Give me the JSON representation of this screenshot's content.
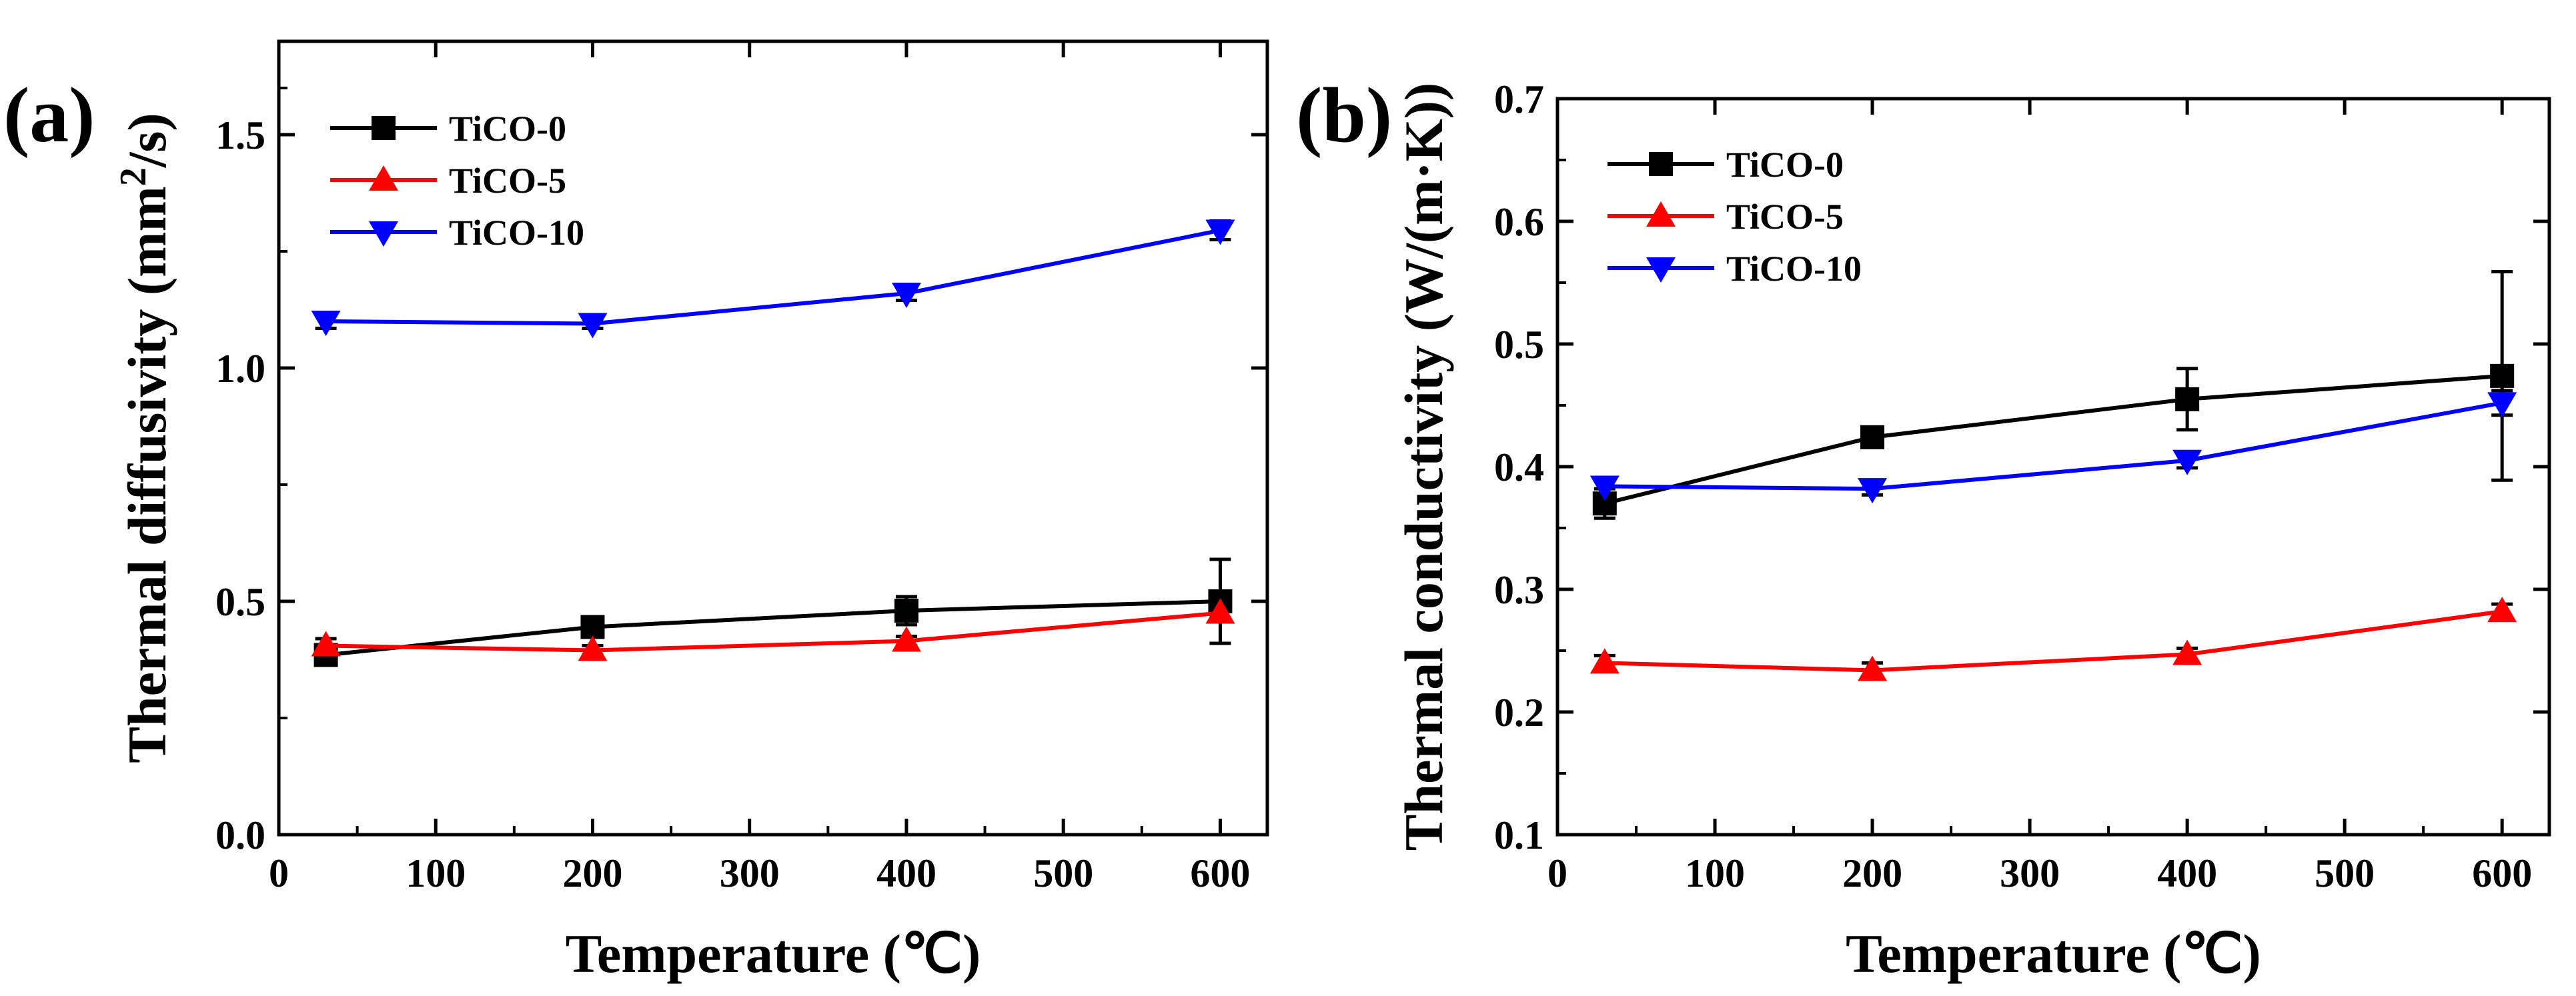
{
  "chart_data": [
    {
      "type": "line",
      "panel_label": "(a)",
      "x": [
        30,
        200,
        400,
        600
      ],
      "xlim": [
        0,
        630
      ],
      "xticks": [
        0,
        100,
        200,
        300,
        400,
        500,
        600
      ],
      "xtick_labels": [
        "0",
        "100",
        "200",
        "300",
        "400",
        "500",
        "600"
      ],
      "xlabel": "Temperature (℃)",
      "ylabel_main": "Thermal diffusivity (mm",
      "ylabel_sup": "2",
      "ylabel_tail": "/s)",
      "ylim": [
        0,
        1.7
      ],
      "yticks": [
        0.0,
        0.5,
        1.0,
        1.5
      ],
      "ytick_labels": [
        "0.0",
        "0.5",
        "1.0",
        "1.5"
      ],
      "legend_position": "top-left",
      "series": [
        {
          "name": "TiCO-0",
          "color": "#000000",
          "marker": "square",
          "values": [
            0.385,
            0.445,
            0.48,
            0.5
          ],
          "errors": [
            0.02,
            0.02,
            0.03,
            0.09
          ]
        },
        {
          "name": "TiCO-5",
          "color": "#ff0000",
          "marker": "triangle-up",
          "values": [
            0.405,
            0.395,
            0.415,
            0.475
          ],
          "errors": [
            0.015,
            0.01,
            0.01,
            0.01
          ]
        },
        {
          "name": "TiCO-10",
          "color": "#0000ff",
          "marker": "triangle-down",
          "values": [
            1.1,
            1.095,
            1.16,
            1.295
          ],
          "errors": [
            0.015,
            0.01,
            0.015,
            0.02
          ]
        }
      ]
    },
    {
      "type": "line",
      "panel_label": "(b)",
      "x": [
        30,
        200,
        400,
        600
      ],
      "xlim": [
        0,
        630
      ],
      "xticks": [
        0,
        100,
        200,
        300,
        400,
        500,
        600
      ],
      "xtick_labels": [
        "0",
        "100",
        "200",
        "300",
        "400",
        "500",
        "600"
      ],
      "xlabel": "Temperature (℃)",
      "ylabel": "Thermal conductivity (W/(m·K))",
      "ylim": [
        0.1,
        0.7
      ],
      "yticks": [
        0.1,
        0.2,
        0.3,
        0.4,
        0.5,
        0.6,
        0.7
      ],
      "ytick_labels": [
        "0.1",
        "0.2",
        "0.3",
        "0.4",
        "0.5",
        "0.6",
        "0.7"
      ],
      "legend_position": "top-left",
      "series": [
        {
          "name": "TiCO-0",
          "color": "#000000",
          "marker": "square",
          "values": [
            0.37,
            0.424,
            0.455,
            0.474
          ],
          "errors": [
            0.012,
            0.007,
            0.025,
            0.085
          ]
        },
        {
          "name": "TiCO-5",
          "color": "#ff0000",
          "marker": "triangle-up",
          "values": [
            0.24,
            0.234,
            0.247,
            0.282
          ],
          "errors": [
            0.006,
            0.006,
            0.005,
            0.006
          ]
        },
        {
          "name": "TiCO-10",
          "color": "#0000ff",
          "marker": "triangle-down",
          "values": [
            0.384,
            0.382,
            0.405,
            0.452
          ],
          "errors": [
            0.006,
            0.005,
            0.006,
            0.01
          ]
        }
      ]
    }
  ]
}
